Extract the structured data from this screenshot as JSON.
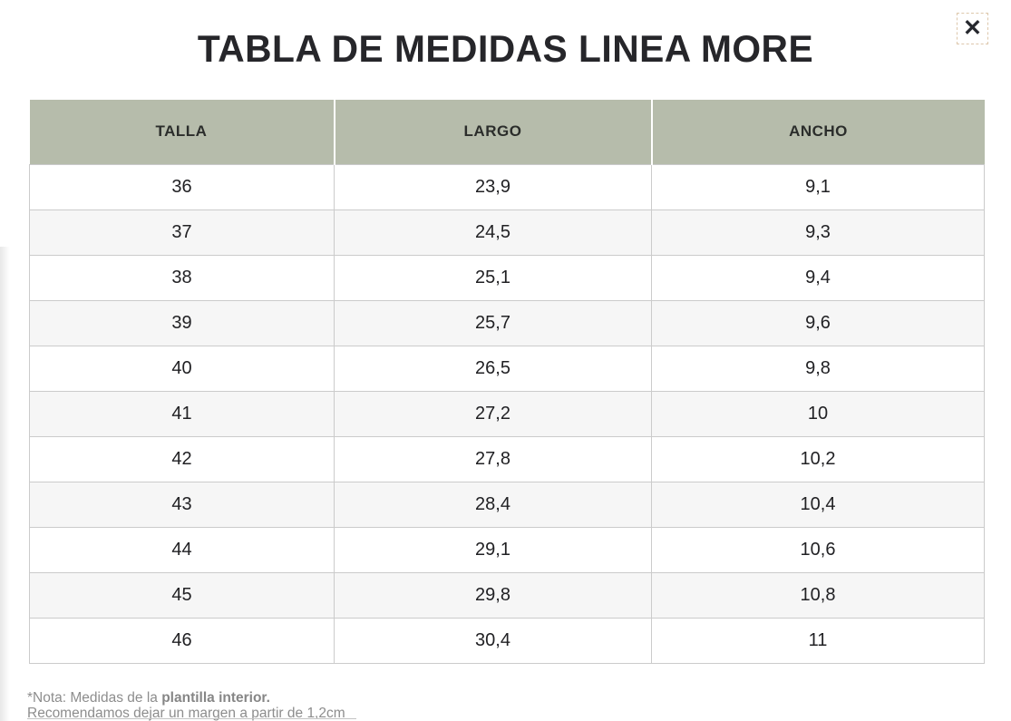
{
  "dialog": {
    "title": "TABLA DE MEDIDAS LINEA MORE",
    "close_glyph": "✕"
  },
  "table": {
    "columns": [
      "TALLA",
      "LARGO",
      "ANCHO"
    ],
    "rows": [
      [
        "36",
        "23,9",
        "9,1"
      ],
      [
        "37",
        "24,5",
        "9,3"
      ],
      [
        "38",
        "25,1",
        "9,4"
      ],
      [
        "39",
        "25,7",
        "9,6"
      ],
      [
        "40",
        "26,5",
        "9,8"
      ],
      [
        "41",
        "27,2",
        "10"
      ],
      [
        "42",
        "27,8",
        "10,2"
      ],
      [
        "43",
        "28,4",
        "10,4"
      ],
      [
        "44",
        "29,1",
        "10,6"
      ],
      [
        "45",
        "29,8",
        "10,8"
      ],
      [
        "46",
        "30,4",
        "11"
      ]
    ]
  },
  "note": {
    "line1_prefix": "*Nota: Medidas de la ",
    "line1_bold": "plantilla interior.",
    "line2": "Recomendamos dejar un margen a partir de 1,2cm"
  },
  "colors": {
    "header_bg": "#b6bcab",
    "row_alt_bg": "#f6f6f6",
    "border": "#cbcbcb",
    "title_text": "#26262a",
    "note_text": "#8d8d8d",
    "close_focus_ring": "#ddc7ab"
  }
}
